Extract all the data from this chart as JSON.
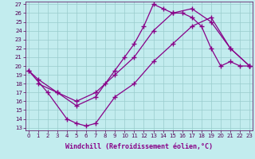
{
  "xlabel": "Windchill (Refroidissement éolien,°C)",
  "xlim": [
    0,
    23
  ],
  "ylim": [
    13,
    27
  ],
  "xticks": [
    0,
    1,
    2,
    3,
    4,
    5,
    6,
    7,
    8,
    9,
    10,
    11,
    12,
    13,
    14,
    15,
    16,
    17,
    18,
    19,
    20,
    21,
    22,
    23
  ],
  "yticks": [
    13,
    14,
    15,
    16,
    17,
    18,
    19,
    20,
    21,
    22,
    23,
    24,
    25,
    26,
    27
  ],
  "background_color": "#c2ecee",
  "line_color": "#880088",
  "grid_color": "#99cccc",
  "line1_x": [
    0,
    1,
    3,
    5,
    7,
    8,
    9,
    10,
    11,
    12,
    13,
    14,
    15,
    16,
    17,
    18,
    19,
    20,
    21,
    22,
    23
  ],
  "line1_y": [
    19.5,
    18.5,
    17.0,
    15.5,
    16.5,
    18.0,
    19.5,
    21.0,
    22.5,
    24.5,
    27.0,
    26.5,
    26.0,
    26.0,
    25.5,
    24.5,
    22.0,
    20.0,
    20.5,
    20.0,
    20.0
  ],
  "line2_x": [
    1,
    3,
    5,
    7,
    9,
    11,
    13,
    15,
    17,
    19,
    21,
    23
  ],
  "line2_y": [
    18.0,
    17.0,
    16.0,
    17.0,
    19.0,
    21.0,
    24.0,
    26.0,
    26.5,
    25.0,
    22.0,
    20.0
  ],
  "line3_x": [
    0,
    2,
    4,
    5,
    6,
    7,
    9,
    11,
    13,
    15,
    17,
    19,
    21,
    23
  ],
  "line3_y": [
    19.5,
    17.0,
    14.0,
    13.5,
    13.2,
    13.5,
    16.5,
    18.0,
    20.5,
    22.5,
    24.5,
    25.5,
    22.0,
    20.0
  ],
  "marker": "+",
  "markersize": 4.0,
  "linewidth": 0.9,
  "tick_fontsize": 5.0,
  "label_fontsize": 6.0
}
